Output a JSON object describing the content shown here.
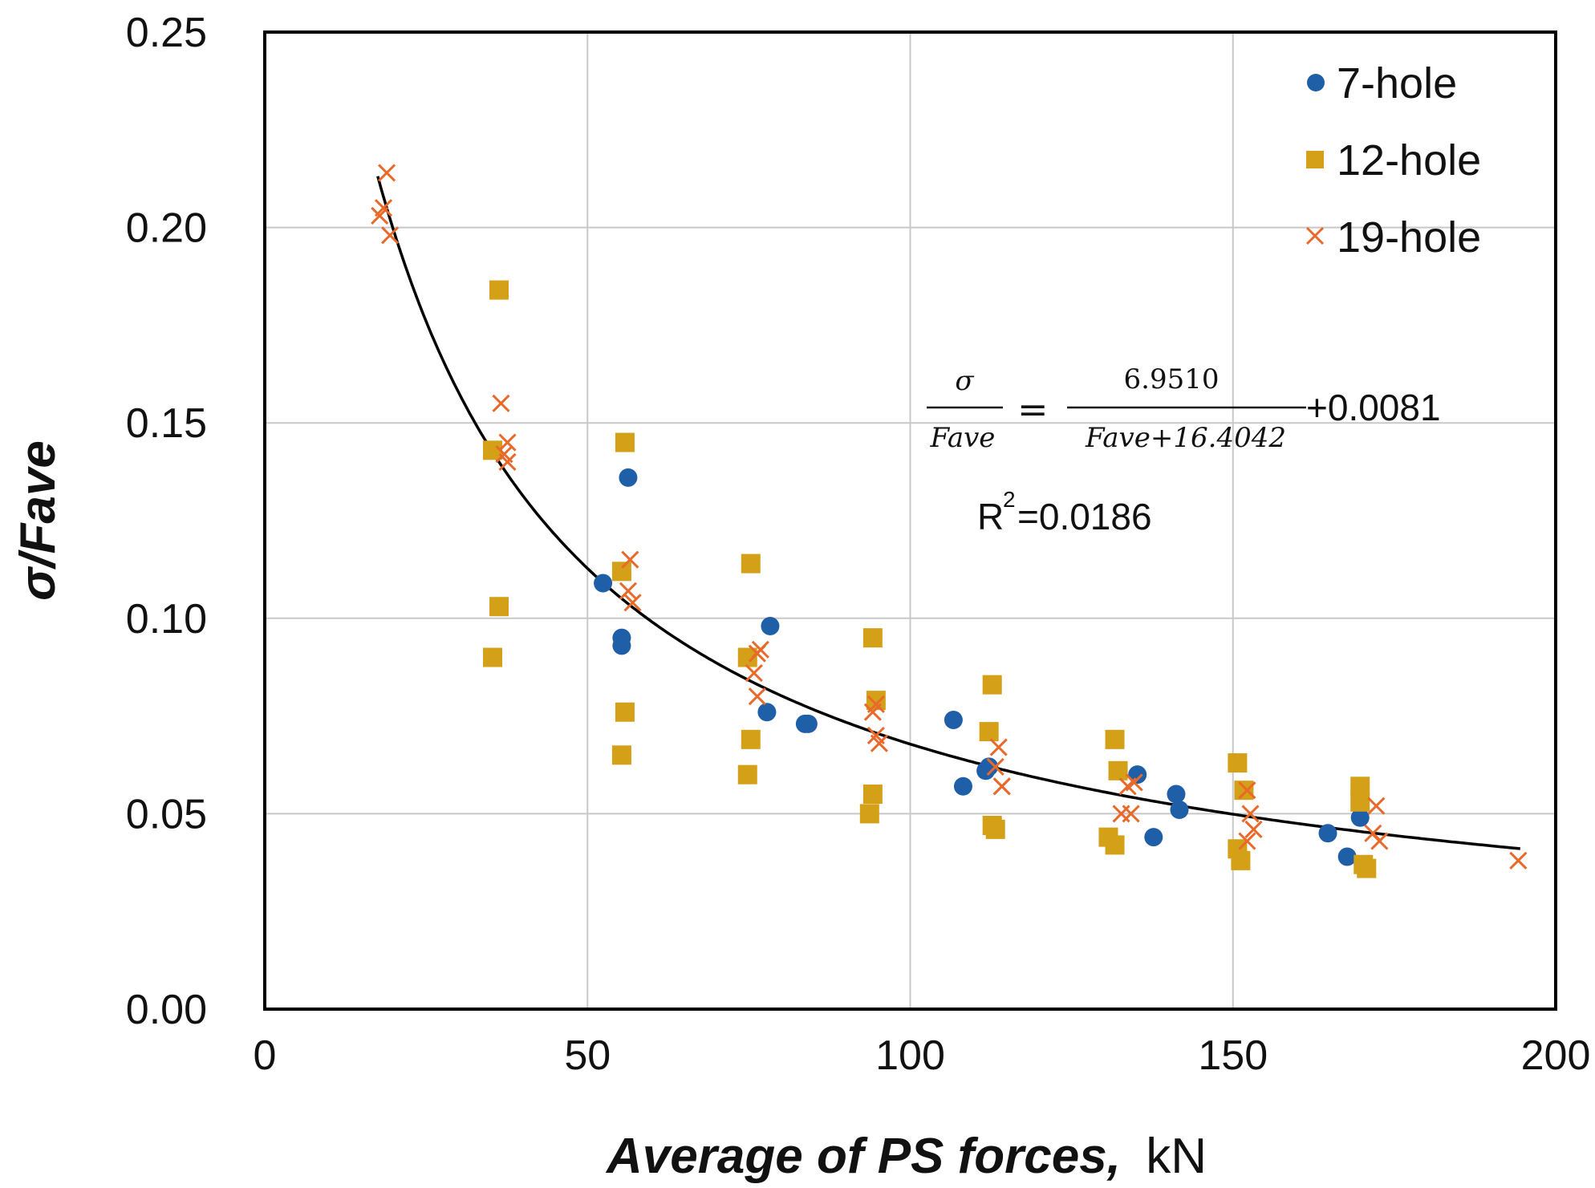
{
  "chart_data": {
    "type": "scatter",
    "xlabel_bold": "Average of PS forces,",
    "xlabel_unit": "kN",
    "ylabel": "σ/Fave",
    "xlim": [
      0,
      200
    ],
    "ylim": [
      0,
      0.25
    ],
    "x_ticks": [
      "0",
      "50",
      "100",
      "150",
      "200"
    ],
    "y_ticks": [
      "0.00",
      "0.05",
      "0.10",
      "0.15",
      "0.20",
      "0.25"
    ],
    "grid": true,
    "legend_position": "top-right",
    "colors": {
      "seven_hole": "#1F5FA8",
      "twelve_hole": "#D4A017",
      "nineteen_hole": "#E8692A",
      "fit": "#000000"
    },
    "series": [
      {
        "name": "7-hole",
        "marker": "circle",
        "points": [
          [
            52.4,
            0.109
          ],
          [
            55.3,
            0.095
          ],
          [
            55.3,
            0.093
          ],
          [
            56.3,
            0.136
          ],
          [
            77.8,
            0.076
          ],
          [
            78.3,
            0.098
          ],
          [
            83.7,
            0.073
          ],
          [
            84.2,
            0.073
          ],
          [
            106.7,
            0.074
          ],
          [
            108.2,
            0.057
          ],
          [
            111.7,
            0.061
          ],
          [
            112.2,
            0.062
          ],
          [
            135.2,
            0.06
          ],
          [
            137.7,
            0.044
          ],
          [
            141.2,
            0.055
          ],
          [
            141.7,
            0.051
          ],
          [
            164.7,
            0.045
          ],
          [
            167.7,
            0.039
          ],
          [
            169.7,
            0.049
          ]
        ]
      },
      {
        "name": "12-hole",
        "marker": "square",
        "points": [
          [
            35.3,
            0.143
          ],
          [
            35.3,
            0.09
          ],
          [
            36.3,
            0.184
          ],
          [
            36.3,
            0.103
          ],
          [
            55.3,
            0.112
          ],
          [
            55.8,
            0.145
          ],
          [
            55.8,
            0.076
          ],
          [
            55.3,
            0.065
          ],
          [
            74.8,
            0.09
          ],
          [
            74.8,
            0.06
          ],
          [
            75.3,
            0.114
          ],
          [
            75.3,
            0.069
          ],
          [
            93.7,
            0.05
          ],
          [
            94.2,
            0.095
          ],
          [
            94.2,
            0.055
          ],
          [
            94.7,
            0.079
          ],
          [
            112.2,
            0.071
          ],
          [
            112.7,
            0.083
          ],
          [
            112.7,
            0.047
          ],
          [
            113.2,
            0.046
          ],
          [
            130.7,
            0.044
          ],
          [
            131.7,
            0.069
          ],
          [
            131.7,
            0.042
          ],
          [
            132.2,
            0.061
          ],
          [
            150.7,
            0.063
          ],
          [
            150.7,
            0.041
          ],
          [
            151.2,
            0.038
          ],
          [
            151.7,
            0.056
          ],
          [
            169.7,
            0.057
          ],
          [
            169.7,
            0.053
          ],
          [
            170.2,
            0.037
          ],
          [
            170.7,
            0.036
          ]
        ]
      },
      {
        "name": "19-hole",
        "marker": "x",
        "points": [
          [
            17.8,
            0.203
          ],
          [
            18.4,
            0.205
          ],
          [
            18.9,
            0.214
          ],
          [
            19.4,
            0.198
          ],
          [
            36.6,
            0.155
          ],
          [
            37.1,
            0.142
          ],
          [
            37.6,
            0.145
          ],
          [
            37.6,
            0.14
          ],
          [
            56.3,
            0.107
          ],
          [
            56.6,
            0.115
          ],
          [
            57.0,
            0.104
          ],
          [
            75.8,
            0.086
          ],
          [
            76.3,
            0.091
          ],
          [
            76.3,
            0.08
          ],
          [
            76.8,
            0.092
          ],
          [
            94.2,
            0.076
          ],
          [
            94.7,
            0.078
          ],
          [
            94.7,
            0.07
          ],
          [
            95.2,
            0.068
          ],
          [
            113.2,
            0.062
          ],
          [
            113.7,
            0.067
          ],
          [
            114.2,
            0.057
          ],
          [
            114.2,
            0.057
          ],
          [
            132.7,
            0.05
          ],
          [
            133.7,
            0.057
          ],
          [
            134.2,
            0.05
          ],
          [
            134.7,
            0.058
          ],
          [
            152.2,
            0.056
          ],
          [
            152.2,
            0.043
          ],
          [
            152.7,
            0.05
          ],
          [
            153.2,
            0.046
          ],
          [
            171.7,
            0.045
          ],
          [
            172.2,
            0.052
          ],
          [
            172.7,
            0.043
          ],
          [
            194.2,
            0.038
          ]
        ]
      }
    ],
    "fit_line": {
      "a": 6.951,
      "b": 16.4042,
      "c": 0.0081,
      "x_range": [
        17.5,
        194.5
      ]
    },
    "equation": {
      "lhs_num": "σ",
      "lhs_den": "Fave",
      "equals": "=",
      "rhs_num": "6.9510",
      "rhs_den": "Fave+16.4042",
      "tail": "+0.0081"
    },
    "r2": {
      "prefix": "R",
      "sup": "2",
      "value": "=0.0186"
    }
  }
}
